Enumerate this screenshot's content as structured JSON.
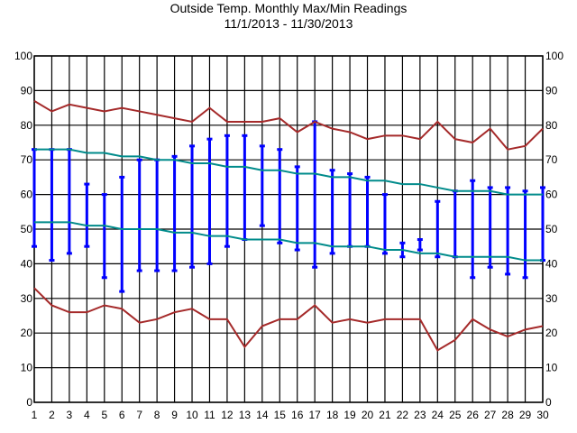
{
  "chart_data": {
    "type": "line",
    "title": "Outside Temp. Monthly Max/Min Readings",
    "subtitle": "11/1/2013 - 11/30/2013",
    "x": [
      1,
      2,
      3,
      4,
      5,
      6,
      7,
      8,
      9,
      10,
      11,
      12,
      13,
      14,
      15,
      16,
      17,
      18,
      19,
      20,
      21,
      22,
      23,
      24,
      25,
      26,
      27,
      28,
      29,
      30
    ],
    "ylim": [
      0,
      100
    ],
    "yticks": [
      0,
      10,
      20,
      30,
      40,
      50,
      60,
      70,
      80,
      90,
      100
    ],
    "grid": true,
    "series": [
      {
        "kind": "line",
        "color": "#a52a2a",
        "values": [
          87,
          84,
          86,
          85,
          84,
          85,
          84,
          83,
          82,
          81,
          85,
          81,
          81,
          81,
          82,
          78,
          81,
          79,
          78,
          76,
          77,
          77,
          76,
          81,
          76,
          75,
          79,
          73,
          74,
          79
        ]
      },
      {
        "kind": "line",
        "color": "#a52a2a",
        "values": [
          33,
          28,
          26,
          26,
          28,
          27,
          23,
          24,
          26,
          27,
          24,
          24,
          16,
          22,
          24,
          24,
          28,
          23,
          24,
          23,
          24,
          24,
          24,
          15,
          18,
          24,
          21,
          19,
          21,
          22
        ]
      },
      {
        "kind": "line",
        "color": "#008b8b",
        "values": [
          73,
          73,
          73,
          72,
          72,
          71,
          71,
          70,
          70,
          69,
          69,
          68,
          68,
          67,
          67,
          66,
          66,
          65,
          65,
          64,
          64,
          63,
          63,
          62,
          61,
          61,
          61,
          60,
          60,
          60
        ]
      },
      {
        "kind": "line",
        "color": "#008b8b",
        "values": [
          52,
          52,
          52,
          51,
          51,
          50,
          50,
          50,
          49,
          49,
          48,
          48,
          47,
          47,
          47,
          46,
          46,
          45,
          45,
          45,
          44,
          44,
          43,
          43,
          42,
          42,
          42,
          42,
          41,
          41
        ]
      },
      {
        "kind": "range",
        "color": "#0000ff",
        "high": [
          73,
          73,
          73,
          63,
          60,
          65,
          70,
          70,
          71,
          74,
          76,
          77,
          77,
          74,
          73,
          68,
          81,
          67,
          66,
          65,
          60,
          46,
          47,
          58,
          61,
          64,
          62,
          62,
          61,
          62
        ],
        "low": [
          45,
          41,
          43,
          45,
          36,
          32,
          38,
          38,
          38,
          39,
          40,
          45,
          47,
          51,
          46,
          44,
          39,
          43,
          45,
          45,
          43,
          42,
          44,
          42,
          42,
          36,
          39,
          37,
          36,
          41
        ]
      }
    ]
  }
}
